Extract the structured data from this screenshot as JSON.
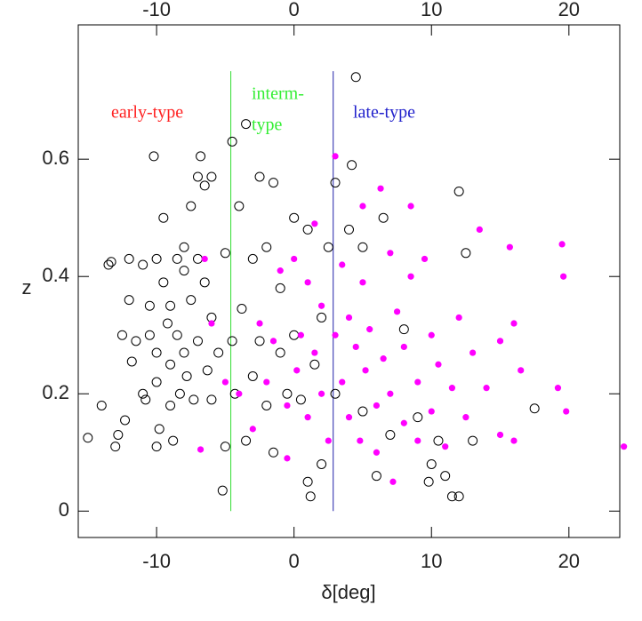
{
  "chart_data": {
    "type": "scatter",
    "xlabel": "δ[deg]",
    "ylabel": "z",
    "xlim": [
      -15.7,
      23.7
    ],
    "ylim": [
      -0.045,
      0.829
    ],
    "xticks": [
      -10,
      0,
      10,
      20
    ],
    "yticks": [
      0,
      0.2,
      0.4,
      0.6
    ],
    "series": [
      {
        "marker": "open",
        "color": "#000000",
        "x": [
          -15,
          -14,
          -13.5,
          -13.3,
          -13,
          -12.8,
          -12.5,
          -12.3,
          -12,
          -12,
          -11.8,
          -11.5,
          -11,
          -11,
          -10.8,
          -10.5,
          -10.5,
          -10.2,
          -10,
          -10,
          -10,
          -10,
          -9.8,
          -9.5,
          -9.5,
          -9.2,
          -9,
          -9,
          -9,
          -8.8,
          -8.5,
          -8.5,
          -8.3,
          -8,
          -8,
          -8,
          -7.8,
          -7.5,
          -7.5,
          -7.3,
          -7,
          -7,
          -7,
          -6.8,
          -6.5,
          -6.5,
          -6.3,
          -6,
          -6,
          -6,
          -5.5,
          -5.2,
          -5,
          -5,
          -4.5,
          -4.5,
          -4.3,
          -4,
          -3.8,
          -3.5,
          -3.5,
          -3,
          -3,
          -2.5,
          -2.5,
          -2,
          -2,
          -1.5,
          -1.5,
          -1,
          -1,
          -0.5,
          0,
          0,
          0.5,
          1,
          1,
          1.2,
          1.5,
          2,
          2,
          2.5,
          3,
          3,
          4,
          4.2,
          4.5,
          5,
          5,
          6,
          6.5,
          7,
          8,
          9,
          9.8,
          10,
          10.5,
          11,
          11.5,
          12,
          12,
          12.5,
          13,
          17.5
        ],
        "values": [
          0.125,
          0.18,
          0.42,
          0.425,
          0.11,
          0.13,
          0.3,
          0.155,
          0.43,
          0.36,
          0.255,
          0.29,
          0.42,
          0.2,
          0.19,
          0.35,
          0.3,
          0.605,
          0.43,
          0.27,
          0.22,
          0.11,
          0.14,
          0.5,
          0.39,
          0.32,
          0.35,
          0.25,
          0.18,
          0.12,
          0.43,
          0.3,
          0.2,
          0.45,
          0.41,
          0.27,
          0.23,
          0.52,
          0.36,
          0.19,
          0.57,
          0.43,
          0.29,
          0.605,
          0.555,
          0.39,
          0.24,
          0.57,
          0.33,
          0.19,
          0.27,
          0.035,
          0.44,
          0.11,
          0.63,
          0.29,
          0.2,
          0.52,
          0.345,
          0.66,
          0.12,
          0.43,
          0.23,
          0.57,
          0.29,
          0.45,
          0.18,
          0.56,
          0.1,
          0.38,
          0.27,
          0.2,
          0.5,
          0.3,
          0.19,
          0.48,
          0.05,
          0.025,
          0.25,
          0.08,
          0.33,
          0.45,
          0.56,
          0.2,
          0.48,
          0.59,
          0.74,
          0.17,
          0.45,
          0.06,
          0.5,
          0.13,
          0.31,
          0.16,
          0.05,
          0.08,
          0.12,
          0.06,
          0.025,
          0.545,
          0.025,
          0.44,
          0.12,
          0.175
        ]
      },
      {
        "marker": "filled",
        "color": "#ff00ff",
        "x": [
          -6.8,
          -6.5,
          -6,
          -5,
          -4,
          -3,
          -2.5,
          -2,
          -1.5,
          -1,
          -0.5,
          -0.5,
          0,
          0.2,
          0.5,
          1,
          1,
          1.5,
          1.5,
          2,
          2,
          2.5,
          3,
          3,
          3.5,
          3.5,
          4,
          4,
          4.5,
          4.8,
          5,
          5,
          5.2,
          5.5,
          6,
          6,
          6.3,
          6.5,
          7,
          7,
          7.2,
          7.5,
          8,
          8,
          8.5,
          8.5,
          9,
          9,
          9.5,
          10,
          10,
          10.5,
          11,
          11.5,
          12,
          12.5,
          13,
          13.5,
          14,
          15,
          15,
          15.7,
          16,
          16,
          16.5,
          19.2,
          19.5,
          19.6,
          19.8,
          24
        ],
        "values": [
          0.105,
          0.43,
          0.32,
          0.22,
          0.2,
          0.14,
          0.32,
          0.22,
          0.29,
          0.41,
          0.18,
          0.09,
          0.43,
          0.24,
          0.3,
          0.16,
          0.39,
          0.27,
          0.49,
          0.2,
          0.35,
          0.12,
          0.605,
          0.3,
          0.42,
          0.22,
          0.33,
          0.16,
          0.28,
          0.12,
          0.52,
          0.39,
          0.24,
          0.31,
          0.18,
          0.1,
          0.55,
          0.26,
          0.44,
          0.2,
          0.05,
          0.34,
          0.28,
          0.15,
          0.52,
          0.4,
          0.22,
          0.12,
          0.43,
          0.3,
          0.17,
          0.25,
          0.11,
          0.21,
          0.33,
          0.16,
          0.27,
          0.48,
          0.21,
          0.13,
          0.29,
          0.45,
          0.32,
          0.12,
          0.24,
          0.21,
          0.455,
          0.4,
          0.17,
          0.11
        ]
      }
    ],
    "vlines": [
      {
        "x": -4.6,
        "ymin": 0,
        "ymax": 0.75,
        "color": "#33dd33"
      },
      {
        "x": 2.85,
        "ymin": 0,
        "ymax": 0.75,
        "color": "#2222aa"
      }
    ],
    "annotations": [
      {
        "text": "early-type",
        "color": "#ff2222"
      },
      {
        "text": "interm-",
        "color": "#33ee33"
      },
      {
        "text": "type",
        "color": "#33ee33"
      },
      {
        "text": "late-type",
        "color": "#2222cc"
      }
    ]
  }
}
